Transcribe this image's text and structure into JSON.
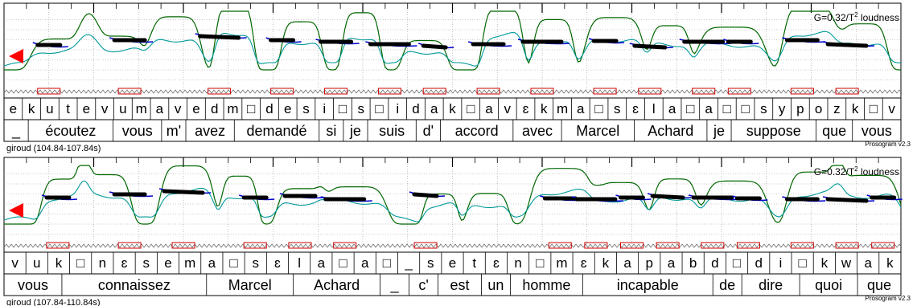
{
  "chart_data": [
    {
      "type": "line",
      "title": "",
      "caption": "giroud (104.84-107.84s)",
      "version": "Prosogram v2.3",
      "params": "G=0.32/T",
      "params_sup": "2",
      "params_suffix": "loudness",
      "time_range": [
        104.84,
        107.84
      ],
      "colors": {
        "pitch": "#0000cc",
        "intensity": "#009999",
        "loudness": "#006600",
        "stylized": "#000000",
        "marker": "#ff0000"
      },
      "phones": [
        "e",
        "k",
        "u",
        "t",
        "e",
        "v",
        "u",
        "m",
        "a",
        "v",
        "e",
        "d",
        "m",
        "□",
        "d",
        "e",
        "s",
        "i",
        "□",
        "s",
        "□",
        "i",
        "d",
        "a",
        "k",
        "□",
        "a",
        "v",
        "ɛ",
        "k",
        "m",
        "a",
        "□",
        "s",
        "ɛ",
        "l",
        "a",
        "□",
        "a",
        "□",
        "□",
        "s",
        "y",
        "p",
        "o",
        "z",
        "k",
        "□",
        "v"
      ],
      "words": [
        "_",
        "écoutez",
        "vous",
        "m'",
        "avez",
        "demandé",
        "si",
        "je",
        "suis",
        "d'",
        "accord",
        "avec",
        "Marcel",
        "Achard",
        "je",
        "suppose",
        "que",
        "vous"
      ],
      "stylized": [
        [
          0.05,
          0.56
        ],
        [
          0.14,
          0.62
        ],
        [
          0.24,
          0.67
        ],
        [
          0.31,
          0.62
        ],
        [
          0.37,
          0.6
        ],
        [
          0.43,
          0.57
        ],
        [
          0.48,
          0.55
        ],
        [
          0.54,
          0.57
        ],
        [
          0.6,
          0.6
        ],
        [
          0.67,
          0.61
        ],
        [
          0.72,
          0.55
        ],
        [
          0.78,
          0.6
        ],
        [
          0.82,
          0.6
        ],
        [
          0.89,
          0.62
        ],
        [
          0.94,
          0.57
        ]
      ]
    },
    {
      "type": "line",
      "title": "",
      "caption": "giroud (107.84-110.84s)",
      "version": "Prosogram v2.3",
      "params": "G=0.32/T",
      "params_sup": "2",
      "params_suffix": "loudness",
      "time_range": [
        107.84,
        110.84
      ],
      "colors": {
        "pitch": "#0000cc",
        "intensity": "#009999",
        "loudness": "#006600",
        "stylized": "#000000",
        "marker": "#ff0000"
      },
      "phones": [
        "v",
        "u",
        "k",
        "□",
        "n",
        "ɛ",
        "s",
        "e",
        "m",
        "a",
        "□",
        "s",
        "ɛ",
        "l",
        "a",
        "□",
        "a",
        "□",
        "_",
        "s",
        "e",
        "t",
        "ɛ",
        "n",
        "□",
        "m",
        "ɛ",
        "k",
        "a",
        "p",
        "a",
        "b",
        "d",
        "□",
        "d",
        "i",
        "□",
        "k",
        "w",
        "a",
        "k"
      ],
      "words": [
        "vous",
        "connaissez",
        "Marcel",
        "Achard",
        "_",
        "c'",
        "est",
        "un",
        "homme",
        "incapable",
        "de",
        "dire",
        "quoi",
        "que"
      ],
      "stylized": [
        [
          0.06,
          0.58
        ],
        [
          0.14,
          0.62
        ],
        [
          0.2,
          0.66
        ],
        [
          0.28,
          0.58
        ],
        [
          0.33,
          0.6
        ],
        [
          0.38,
          0.56
        ],
        [
          0.47,
          0.62
        ],
        [
          0.62,
          0.57
        ],
        [
          0.66,
          0.56
        ],
        [
          0.7,
          0.58
        ],
        [
          0.74,
          0.6
        ],
        [
          0.79,
          0.58
        ],
        [
          0.83,
          0.57
        ],
        [
          0.89,
          0.56
        ],
        [
          0.94,
          0.56
        ],
        [
          0.98,
          0.58
        ]
      ]
    }
  ]
}
